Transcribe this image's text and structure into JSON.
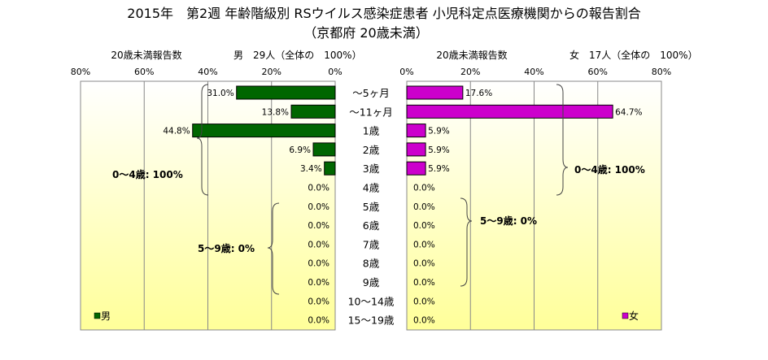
{
  "header": {
    "title_line1": "2015年　第2週 年齢階級別 RSウイルス感染症患者 小児科定点医療機関からの報告割合",
    "title_line2": "（京都府 20歳未満）"
  },
  "chart_data": {
    "type": "bar",
    "categories": [
      "～5ヶ月",
      "～11ヶ月",
      "1歳",
      "2歳",
      "3歳",
      "4歳",
      "5歳",
      "6歳",
      "7歳",
      "8歳",
      "9歳",
      "10～14歳",
      "15～19歳"
    ],
    "series": [
      {
        "name": "男",
        "caption": "20歳未満報告数",
        "summary": "男　29人（全体の　100%）",
        "color": "#006600",
        "values": [
          31.0,
          13.8,
          44.8,
          6.9,
          3.4,
          0.0,
          0.0,
          0.0,
          0.0,
          0.0,
          0.0,
          0.0,
          0.0
        ],
        "value_labels": [
          "31.0%",
          "13.8%",
          "44.8%",
          "6.9%",
          "3.4%",
          "0.0%",
          "0.0%",
          "0.0%",
          "0.0%",
          "0.0%",
          "0.0%",
          "0.0%",
          "0.0%"
        ]
      },
      {
        "name": "女",
        "caption": "20歳未満報告数",
        "summary": "女　17人（全体の　100%）",
        "color": "#cc00cc",
        "values": [
          17.6,
          64.7,
          5.9,
          5.9,
          5.9,
          0.0,
          0.0,
          0.0,
          0.0,
          0.0,
          0.0,
          0.0,
          0.0
        ],
        "value_labels": [
          "17.6%",
          "64.7%",
          "5.9%",
          "5.9%",
          "5.9%",
          "0.0%",
          "0.0%",
          "0.0%",
          "0.0%",
          "0.0%",
          "0.0%",
          "0.0%",
          "0.0%"
        ]
      }
    ],
    "xlim": [
      0,
      80
    ],
    "tick_labels": [
      "80%",
      "60%",
      "40%",
      "20%",
      "0%"
    ],
    "tick_labels_right": [
      "0%",
      "20%",
      "40%",
      "60%",
      "80%"
    ],
    "grid": true,
    "annotations": {
      "male_0_4": "0～4歳: 100%",
      "male_5_9": "5～9歳: 0%",
      "female_0_4": "0～4歳: 100%",
      "female_5_9": "5～9歳: 0%"
    },
    "legend": {
      "male": "男",
      "female": "女",
      "placement": "bottom-corners"
    },
    "plot_background": "#ffff99"
  }
}
